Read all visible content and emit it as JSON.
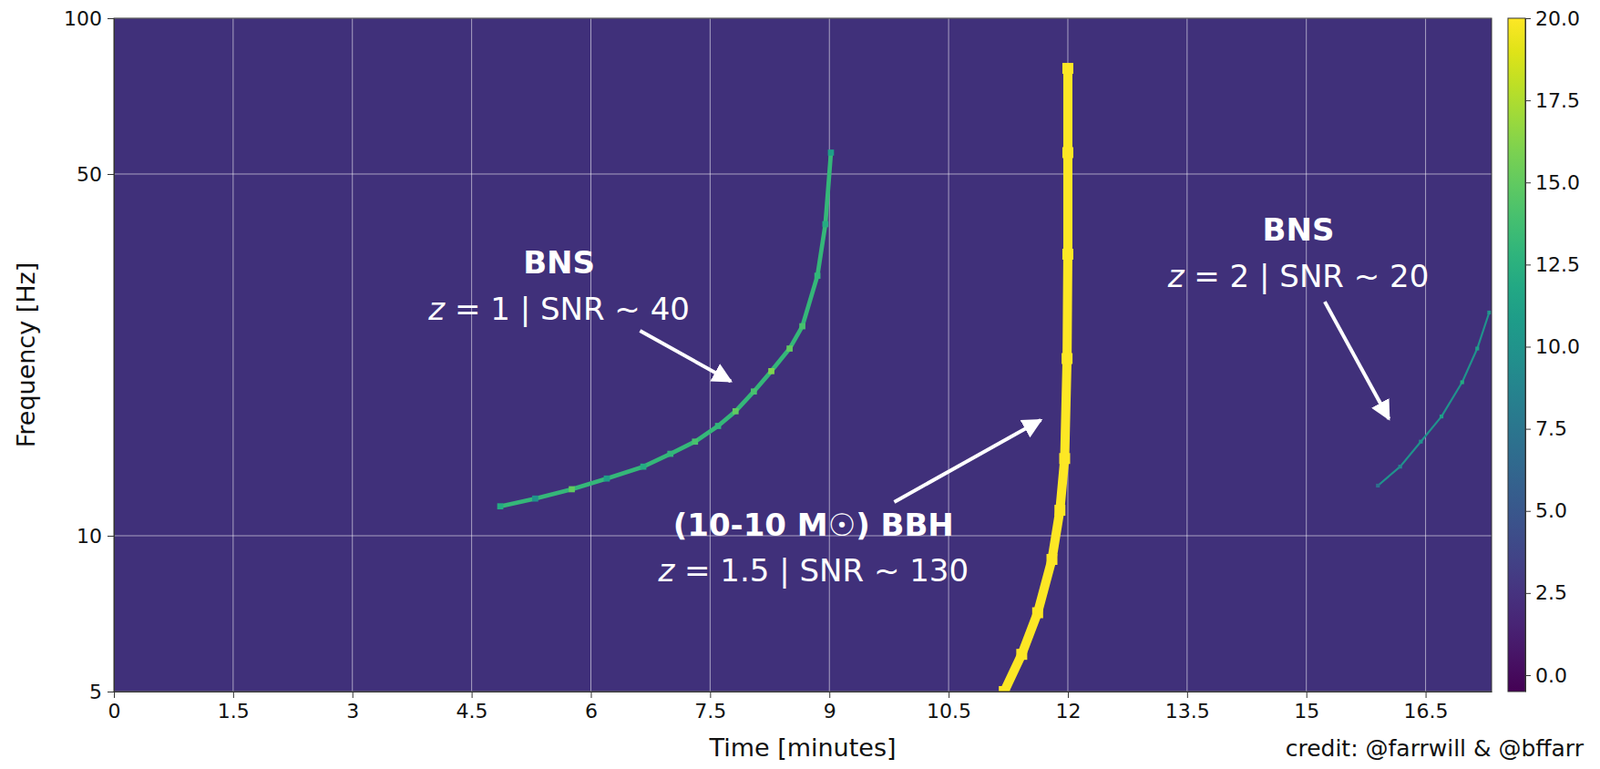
{
  "chart_data": {
    "type": "spectrogram",
    "xlabel": "Time [minutes]",
    "ylabel": "Frequency [Hz]",
    "xlim": [
      0,
      17.33
    ],
    "xticks": [
      0,
      1.5,
      3,
      4.5,
      6,
      7.5,
      9,
      10.5,
      12,
      13.5,
      15,
      16.5
    ],
    "ylim": [
      5,
      100
    ],
    "yticks": [
      5,
      10,
      50,
      100
    ],
    "log": "y",
    "grid": true,
    "series": [
      {
        "x": [
          4.86,
          5.3,
          5.76,
          6.2,
          6.66,
          7.0,
          7.31,
          7.6,
          7.82,
          8.05,
          8.27,
          8.5,
          8.66,
          8.85,
          8.95,
          9.02
        ],
        "y": [
          11.4,
          11.8,
          12.3,
          12.9,
          13.6,
          14.4,
          15.2,
          16.3,
          17.4,
          19,
          20.8,
          23,
          25.4,
          31.8,
          40,
          55
        ],
        "values": [
          12,
          10,
          15,
          11,
          12,
          13,
          14,
          13,
          15,
          14,
          16,
          15,
          14,
          13,
          12,
          11
        ]
      },
      {
        "x": [
          11.2,
          11.42,
          11.62,
          11.8,
          11.9,
          11.96,
          11.99,
          12.0,
          12.0,
          12.0
        ],
        "y": [
          5,
          5.9,
          7.1,
          9.0,
          11.2,
          14.1,
          22,
          35,
          55,
          80
        ],
        "values": [
          20,
          20,
          20,
          20,
          20,
          20,
          20,
          20,
          20,
          20
        ]
      },
      {
        "x": [
          15.9,
          16.18,
          16.44,
          16.7,
          16.96,
          17.15,
          17.3
        ],
        "y": [
          12.5,
          13.6,
          15.2,
          17,
          19.8,
          23,
          27
        ],
        "values": [
          7,
          9,
          10,
          11,
          12,
          11,
          10
        ]
      }
    ],
    "colorbar": {
      "range": [
        -0.5,
        20
      ],
      "ticks": [
        {
          "value": 0,
          "label": "0.0"
        },
        {
          "value": 2.5,
          "label": "2.5"
        },
        {
          "value": 5,
          "label": "5.0"
        },
        {
          "value": 7.5,
          "label": "7.5"
        },
        {
          "value": 10,
          "label": "10.0"
        },
        {
          "value": 12.5,
          "label": "12.5"
        },
        {
          "value": 15,
          "label": "15.0"
        },
        {
          "value": 17.5,
          "label": "17.5"
        },
        {
          "value": 20,
          "label": "20.0"
        }
      ]
    },
    "annotations": [
      {
        "lines": [
          "BNS",
          "z = 1 | SNR ~ 40"
        ],
        "text_x": 5.6,
        "text_y": 33.4,
        "x": 7.78,
        "y": 19.8
      },
      {
        "lines": [
          "(10-10 M☉) BBH",
          "z = 1.5 | SNR ~ 130"
        ],
        "text_x": 8.8,
        "text_y": 10.4,
        "x": 11.68,
        "y": 16.8
      },
      {
        "lines": [
          "BNS",
          "z = 2 | SNR ~ 20"
        ],
        "text_x": 14.9,
        "text_y": 38.6,
        "x": 16.05,
        "y": 16.7
      }
    ],
    "credit": "credit: @farrwill & @bffarr"
  }
}
